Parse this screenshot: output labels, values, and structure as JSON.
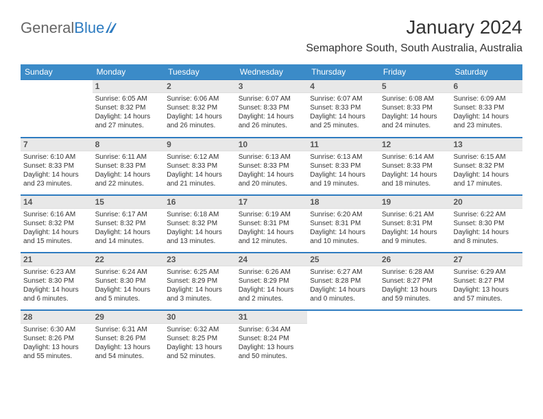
{
  "brand": {
    "general": "General",
    "blue": "Blue"
  },
  "title": "January 2024",
  "location": "Semaphore South, South Australia, Australia",
  "header_bg": "#3b8bc8",
  "accent": "#2d7bc0",
  "daynum_bg": "#e8e8e8",
  "daynames": [
    "Sunday",
    "Monday",
    "Tuesday",
    "Wednesday",
    "Thursday",
    "Friday",
    "Saturday"
  ],
  "weeks": [
    [
      null,
      {
        "n": "1",
        "sr": "Sunrise: 6:05 AM",
        "ss": "Sunset: 8:32 PM",
        "d1": "Daylight: 14 hours",
        "d2": "and 27 minutes."
      },
      {
        "n": "2",
        "sr": "Sunrise: 6:06 AM",
        "ss": "Sunset: 8:32 PM",
        "d1": "Daylight: 14 hours",
        "d2": "and 26 minutes."
      },
      {
        "n": "3",
        "sr": "Sunrise: 6:07 AM",
        "ss": "Sunset: 8:33 PM",
        "d1": "Daylight: 14 hours",
        "d2": "and 26 minutes."
      },
      {
        "n": "4",
        "sr": "Sunrise: 6:07 AM",
        "ss": "Sunset: 8:33 PM",
        "d1": "Daylight: 14 hours",
        "d2": "and 25 minutes."
      },
      {
        "n": "5",
        "sr": "Sunrise: 6:08 AM",
        "ss": "Sunset: 8:33 PM",
        "d1": "Daylight: 14 hours",
        "d2": "and 24 minutes."
      },
      {
        "n": "6",
        "sr": "Sunrise: 6:09 AM",
        "ss": "Sunset: 8:33 PM",
        "d1": "Daylight: 14 hours",
        "d2": "and 23 minutes."
      }
    ],
    [
      {
        "n": "7",
        "sr": "Sunrise: 6:10 AM",
        "ss": "Sunset: 8:33 PM",
        "d1": "Daylight: 14 hours",
        "d2": "and 23 minutes."
      },
      {
        "n": "8",
        "sr": "Sunrise: 6:11 AM",
        "ss": "Sunset: 8:33 PM",
        "d1": "Daylight: 14 hours",
        "d2": "and 22 minutes."
      },
      {
        "n": "9",
        "sr": "Sunrise: 6:12 AM",
        "ss": "Sunset: 8:33 PM",
        "d1": "Daylight: 14 hours",
        "d2": "and 21 minutes."
      },
      {
        "n": "10",
        "sr": "Sunrise: 6:13 AM",
        "ss": "Sunset: 8:33 PM",
        "d1": "Daylight: 14 hours",
        "d2": "and 20 minutes."
      },
      {
        "n": "11",
        "sr": "Sunrise: 6:13 AM",
        "ss": "Sunset: 8:33 PM",
        "d1": "Daylight: 14 hours",
        "d2": "and 19 minutes."
      },
      {
        "n": "12",
        "sr": "Sunrise: 6:14 AM",
        "ss": "Sunset: 8:33 PM",
        "d1": "Daylight: 14 hours",
        "d2": "and 18 minutes."
      },
      {
        "n": "13",
        "sr": "Sunrise: 6:15 AM",
        "ss": "Sunset: 8:32 PM",
        "d1": "Daylight: 14 hours",
        "d2": "and 17 minutes."
      }
    ],
    [
      {
        "n": "14",
        "sr": "Sunrise: 6:16 AM",
        "ss": "Sunset: 8:32 PM",
        "d1": "Daylight: 14 hours",
        "d2": "and 15 minutes."
      },
      {
        "n": "15",
        "sr": "Sunrise: 6:17 AM",
        "ss": "Sunset: 8:32 PM",
        "d1": "Daylight: 14 hours",
        "d2": "and 14 minutes."
      },
      {
        "n": "16",
        "sr": "Sunrise: 6:18 AM",
        "ss": "Sunset: 8:32 PM",
        "d1": "Daylight: 14 hours",
        "d2": "and 13 minutes."
      },
      {
        "n": "17",
        "sr": "Sunrise: 6:19 AM",
        "ss": "Sunset: 8:31 PM",
        "d1": "Daylight: 14 hours",
        "d2": "and 12 minutes."
      },
      {
        "n": "18",
        "sr": "Sunrise: 6:20 AM",
        "ss": "Sunset: 8:31 PM",
        "d1": "Daylight: 14 hours",
        "d2": "and 10 minutes."
      },
      {
        "n": "19",
        "sr": "Sunrise: 6:21 AM",
        "ss": "Sunset: 8:31 PM",
        "d1": "Daylight: 14 hours",
        "d2": "and 9 minutes."
      },
      {
        "n": "20",
        "sr": "Sunrise: 6:22 AM",
        "ss": "Sunset: 8:30 PM",
        "d1": "Daylight: 14 hours",
        "d2": "and 8 minutes."
      }
    ],
    [
      {
        "n": "21",
        "sr": "Sunrise: 6:23 AM",
        "ss": "Sunset: 8:30 PM",
        "d1": "Daylight: 14 hours",
        "d2": "and 6 minutes."
      },
      {
        "n": "22",
        "sr": "Sunrise: 6:24 AM",
        "ss": "Sunset: 8:30 PM",
        "d1": "Daylight: 14 hours",
        "d2": "and 5 minutes."
      },
      {
        "n": "23",
        "sr": "Sunrise: 6:25 AM",
        "ss": "Sunset: 8:29 PM",
        "d1": "Daylight: 14 hours",
        "d2": "and 3 minutes."
      },
      {
        "n": "24",
        "sr": "Sunrise: 6:26 AM",
        "ss": "Sunset: 8:29 PM",
        "d1": "Daylight: 14 hours",
        "d2": "and 2 minutes."
      },
      {
        "n": "25",
        "sr": "Sunrise: 6:27 AM",
        "ss": "Sunset: 8:28 PM",
        "d1": "Daylight: 14 hours",
        "d2": "and 0 minutes."
      },
      {
        "n": "26",
        "sr": "Sunrise: 6:28 AM",
        "ss": "Sunset: 8:27 PM",
        "d1": "Daylight: 13 hours",
        "d2": "and 59 minutes."
      },
      {
        "n": "27",
        "sr": "Sunrise: 6:29 AM",
        "ss": "Sunset: 8:27 PM",
        "d1": "Daylight: 13 hours",
        "d2": "and 57 minutes."
      }
    ],
    [
      {
        "n": "28",
        "sr": "Sunrise: 6:30 AM",
        "ss": "Sunset: 8:26 PM",
        "d1": "Daylight: 13 hours",
        "d2": "and 55 minutes."
      },
      {
        "n": "29",
        "sr": "Sunrise: 6:31 AM",
        "ss": "Sunset: 8:26 PM",
        "d1": "Daylight: 13 hours",
        "d2": "and 54 minutes."
      },
      {
        "n": "30",
        "sr": "Sunrise: 6:32 AM",
        "ss": "Sunset: 8:25 PM",
        "d1": "Daylight: 13 hours",
        "d2": "and 52 minutes."
      },
      {
        "n": "31",
        "sr": "Sunrise: 6:34 AM",
        "ss": "Sunset: 8:24 PM",
        "d1": "Daylight: 13 hours",
        "d2": "and 50 minutes."
      },
      null,
      null,
      null
    ]
  ]
}
